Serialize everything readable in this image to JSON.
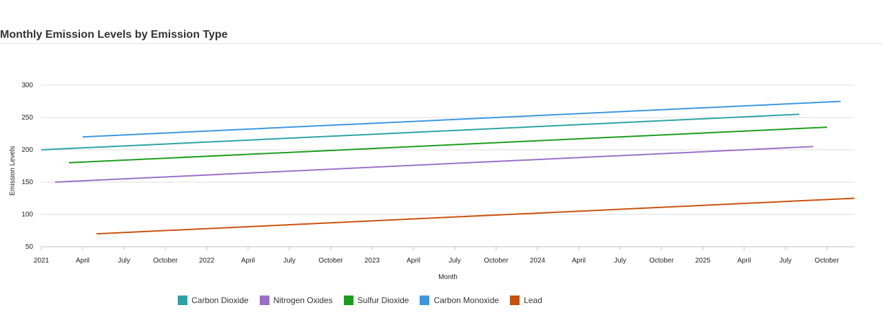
{
  "chart_data": {
    "type": "line",
    "title": "Monthly Emission Levels by Emission Type",
    "xlabel": "Month",
    "ylabel": "Emission Levels",
    "xlim": [
      "2021-01",
      "2025-12"
    ],
    "ylim": [
      50,
      300
    ],
    "yticks": [
      50,
      100,
      150,
      200,
      250,
      300
    ],
    "xticks": [
      {
        "date": "2021-01",
        "label": "2021"
      },
      {
        "date": "2021-04",
        "label": "April"
      },
      {
        "date": "2021-07",
        "label": "July"
      },
      {
        "date": "2021-10",
        "label": "October"
      },
      {
        "date": "2022-01",
        "label": "2022"
      },
      {
        "date": "2022-04",
        "label": "April"
      },
      {
        "date": "2022-07",
        "label": "July"
      },
      {
        "date": "2022-10",
        "label": "October"
      },
      {
        "date": "2023-01",
        "label": "2023"
      },
      {
        "date": "2023-04",
        "label": "April"
      },
      {
        "date": "2023-07",
        "label": "July"
      },
      {
        "date": "2023-10",
        "label": "October"
      },
      {
        "date": "2024-01",
        "label": "2024"
      },
      {
        "date": "2024-04",
        "label": "April"
      },
      {
        "date": "2024-07",
        "label": "July"
      },
      {
        "date": "2024-10",
        "label": "October"
      },
      {
        "date": "2025-01",
        "label": "2025"
      },
      {
        "date": "2025-04",
        "label": "April"
      },
      {
        "date": "2025-07",
        "label": "July"
      },
      {
        "date": "2025-10",
        "label": "October"
      }
    ],
    "grid": true,
    "legend_position": "bottom",
    "series": [
      {
        "name": "Carbon Dioxide",
        "color": "#2ba3a4",
        "points": [
          {
            "x": "2021-01",
            "y": 200
          },
          {
            "x": "2025-08",
            "y": 255
          }
        ]
      },
      {
        "name": "Nitrogen Oxides",
        "color": "#9b6fc9",
        "points": [
          {
            "x": "2021-02",
            "y": 150
          },
          {
            "x": "2025-09",
            "y": 205
          }
        ]
      },
      {
        "name": "Sulfur Dioxide",
        "color": "#1a9e1a",
        "points": [
          {
            "x": "2021-03",
            "y": 180
          },
          {
            "x": "2025-10",
            "y": 235
          }
        ]
      },
      {
        "name": "Carbon Monoxide",
        "color": "#3b97e0",
        "points": [
          {
            "x": "2021-04",
            "y": 220
          },
          {
            "x": "2025-11",
            "y": 275
          }
        ]
      },
      {
        "name": "Lead",
        "color": "#c9510c",
        "points": [
          {
            "x": "2021-05",
            "y": 70
          },
          {
            "x": "2025-12",
            "y": 125
          }
        ]
      }
    ]
  }
}
